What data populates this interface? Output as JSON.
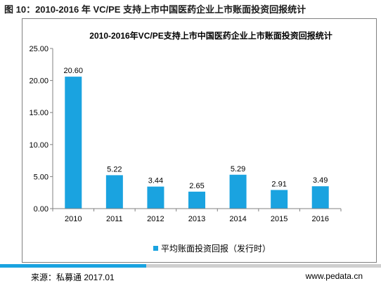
{
  "figure_title": "图 10：2010-2016 年 VC/PE 支持上市中国医药企业上市账面投资回报统计",
  "source": "来源：私募通 2017.01",
  "website": "www.pedata.cn",
  "colors": {
    "bar": "#1aa3e0",
    "axis": "#808080",
    "footer_bar": "#cfcfcf"
  },
  "chart_data": {
    "type": "bar",
    "title": "2010-2016年VC/PE支持上市中国医药企业上市账面投资回报统计",
    "categories": [
      "2010",
      "2011",
      "2012",
      "2013",
      "2014",
      "2015",
      "2016"
    ],
    "series": [
      {
        "name": "平均账面投资回报（发行时）",
        "values": [
          20.6,
          5.22,
          3.44,
          2.65,
          5.29,
          2.91,
          3.49
        ],
        "labels": [
          "20.60",
          "5.22",
          "3.44",
          "2.65",
          "5.29",
          "2.91",
          "3.49"
        ]
      }
    ],
    "ylim": [
      0,
      25
    ],
    "yticks": [
      "0.00",
      "5.00",
      "10.00",
      "15.00",
      "20.00",
      "25.00"
    ],
    "xlabel": "",
    "ylabel": "",
    "grid": false,
    "legend": "bottom-center"
  }
}
